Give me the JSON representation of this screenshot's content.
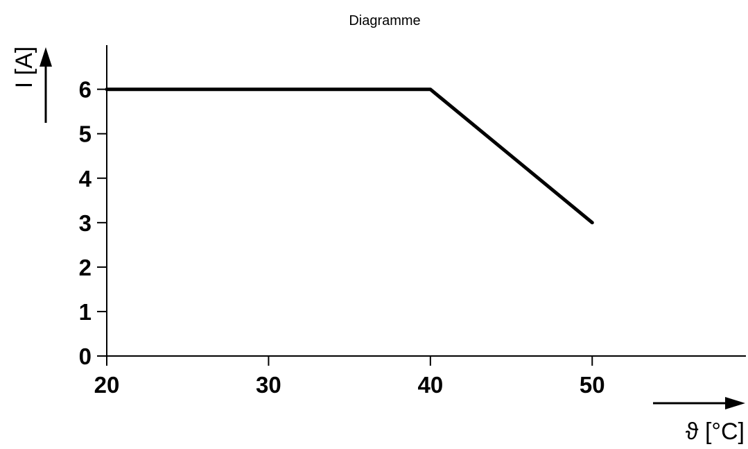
{
  "chart_data": {
    "type": "line",
    "title": "Diagramme",
    "xlabel": "ϑ [°C]",
    "ylabel": "I [A]",
    "xlim": [
      20,
      59.5
    ],
    "ylim": [
      0,
      6.9
    ],
    "x_ticks": [
      20,
      30,
      40,
      50
    ],
    "y_ticks": [
      0,
      1,
      2,
      3,
      4,
      5,
      6
    ],
    "grid": false,
    "series": [
      {
        "x": [
          20,
          40,
          50
        ],
        "y": [
          6,
          6,
          3
        ]
      }
    ],
    "colors": {
      "line": "#000000",
      "axes": "#000000",
      "background": "#ffffff"
    }
  }
}
